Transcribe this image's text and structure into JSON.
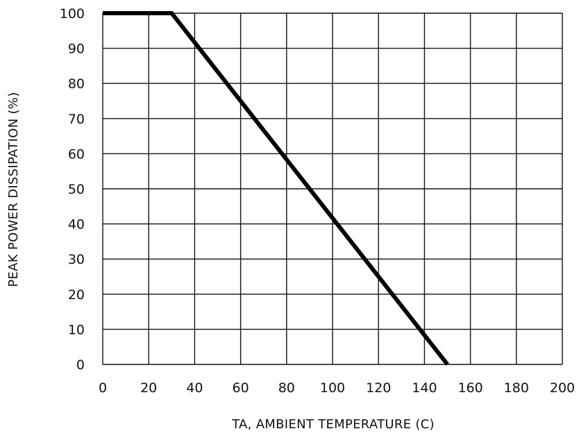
{
  "chart_data": {
    "type": "line",
    "title": "",
    "xlabel": "TA, AMBIENT TEMPERATURE (C)",
    "ylabel": "PEAK POWER DISSIPATION (%)",
    "xlim": [
      0,
      200
    ],
    "ylim": [
      0,
      100
    ],
    "x_ticks": [
      "0",
      "20",
      "40",
      "60",
      "80",
      "100",
      "120",
      "140",
      "160",
      "180",
      "200"
    ],
    "y_ticks": [
      "0",
      "10",
      "20",
      "30",
      "40",
      "50",
      "60",
      "70",
      "80",
      "90",
      "100"
    ],
    "grid": true,
    "legend": "none",
    "line_color": "#000000",
    "grid_color": "#111111",
    "series": [
      {
        "x": [
          0,
          30,
          150
        ],
        "y": [
          100,
          100,
          0
        ]
      }
    ]
  }
}
